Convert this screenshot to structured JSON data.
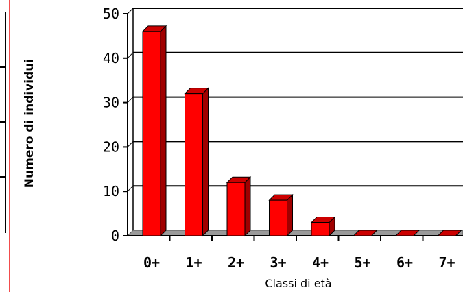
{
  "chart_data": {
    "type": "bar",
    "title": "",
    "xlabel": "Classi di età",
    "ylabel": "Numero di individui",
    "categories": [
      "0+",
      "1+",
      "2+",
      "3+",
      "4+",
      "5+",
      "6+",
      "7+"
    ],
    "values": [
      46,
      32,
      12,
      8,
      3,
      0,
      0,
      0
    ],
    "yticks": [
      "0",
      "10",
      "20",
      "30",
      "40",
      "50"
    ],
    "ylim": [
      0,
      50
    ],
    "grid": true,
    "legend": "none",
    "bar_color": "#ff0000",
    "bar_side_color": "#a00000",
    "bar_top_color": "#cc0000"
  }
}
